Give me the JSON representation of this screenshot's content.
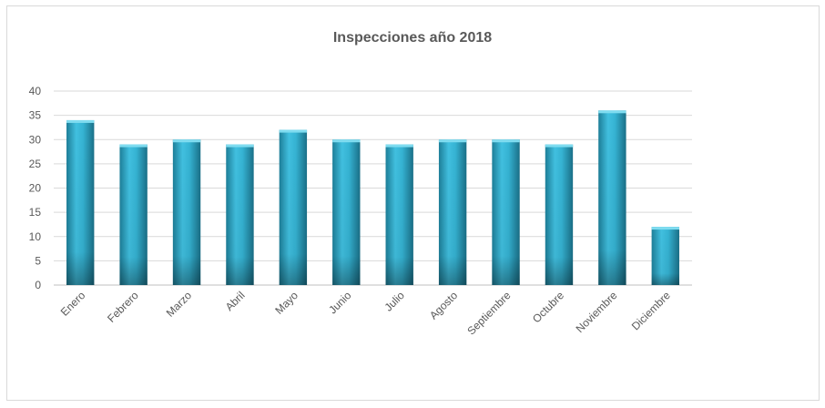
{
  "chart_data": {
    "type": "bar",
    "title": "Inspecciones año 2018",
    "categories": [
      "Enero",
      "Febrero",
      "Marzo",
      "Abril",
      "Mayo",
      "Junio",
      "Julio",
      "Agosto",
      "Septiembre",
      "Octubre",
      "Noviembre",
      "Diciembre"
    ],
    "values": [
      34,
      29,
      30,
      29,
      32,
      30,
      29,
      30,
      30,
      29,
      36,
      12
    ],
    "yticks": [
      "0",
      "5",
      "10",
      "15",
      "20",
      "25",
      "30",
      "35",
      "40"
    ],
    "xlabel": "",
    "ylabel": "",
    "ylim": [
      0,
      40
    ],
    "grid": true,
    "legend": "none",
    "bar_color": "#31a9c8"
  }
}
